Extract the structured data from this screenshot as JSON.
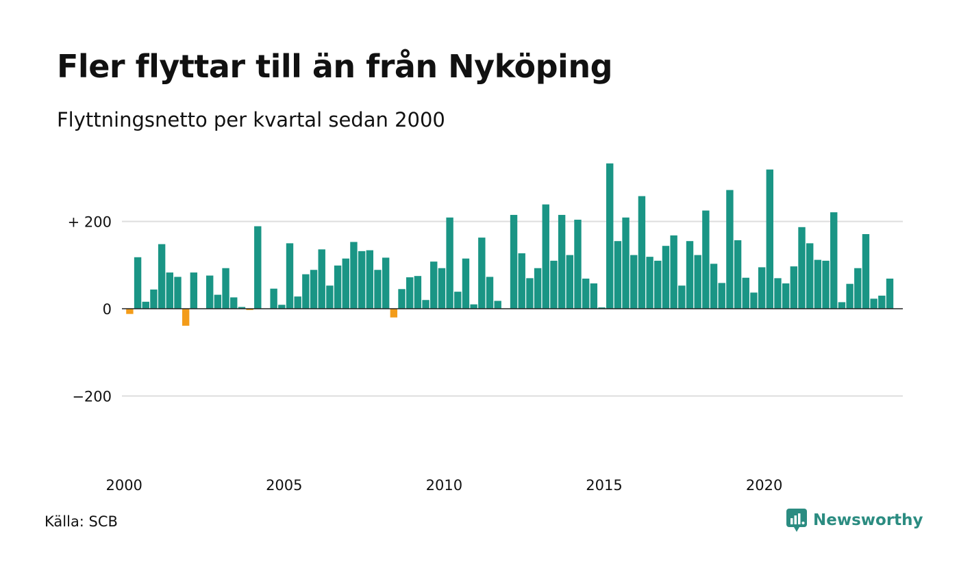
{
  "header": {
    "title": "Fler flyttar till än från Nyköping",
    "subtitle": "Flyttningsnetto per kvartal sedan 2000"
  },
  "footer": {
    "source": "Källa: SCB",
    "brand": "Newsworthy"
  },
  "colors": {
    "positive": "#1a9585",
    "negative": "#f39c1a",
    "grid": "#dddddd",
    "baseline": "#222222",
    "brand": "#2b8c81"
  },
  "chart_data": {
    "type": "bar",
    "title": "Fler flyttar till än från Nyköping",
    "subtitle": "Flyttningsnetto per kvartal sedan 2000",
    "x_start": "2000 Q1",
    "x_tick_labels": [
      "2000",
      "2005",
      "2010",
      "2015",
      "2020"
    ],
    "y_tick_labels": [
      "+ 200",
      "0",
      "−200"
    ],
    "y_ticks": [
      200,
      0,
      -200
    ],
    "ylim": [
      -380,
      340
    ],
    "grid": true,
    "values": [
      -12,
      118,
      16,
      44,
      148,
      83,
      73,
      -39,
      83,
      0,
      76,
      32,
      93,
      26,
      4,
      -3,
      189,
      0,
      46,
      9,
      150,
      28,
      79,
      89,
      136,
      53,
      99,
      115,
      153,
      132,
      134,
      89,
      117,
      -20,
      45,
      72,
      75,
      20,
      108,
      93,
      209,
      39,
      115,
      10,
      163,
      73,
      18,
      0,
      215,
      127,
      70,
      93,
      239,
      110,
      215,
      123,
      204,
      69,
      58,
      3,
      333,
      155,
      209,
      123,
      258,
      119,
      110,
      144,
      168,
      53,
      155,
      123,
      225,
      103,
      59,
      272,
      157,
      71,
      37,
      95,
      319,
      70,
      58,
      97,
      187,
      150,
      112,
      110,
      221,
      15,
      57,
      93,
      171,
      23,
      30,
      69
    ]
  }
}
